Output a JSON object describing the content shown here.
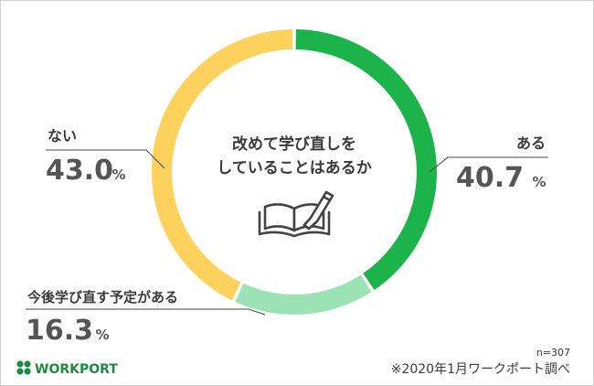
{
  "chart_data": {
    "type": "pie",
    "title": "改めて学び直しを していることはあるか",
    "title_lines": [
      "改めて学び直しを",
      "していることはあるか"
    ],
    "categories": [
      "ある",
      "今後学び直す予定がある",
      "ない"
    ],
    "values": [
      40.7,
      16.3,
      43.0
    ],
    "value_labels": [
      "40.7",
      "16.3",
      "43.0"
    ],
    "unit": "%",
    "colors": [
      "#1cb44a",
      "#9be3b4",
      "#fcd25c"
    ],
    "sample_note": "n=307",
    "source_note": "※2020年1月ワークポート調べ"
  },
  "brand": {
    "name": "WORKPORT",
    "icon": "clover-icon",
    "color": "#1f8a3d"
  },
  "center_icon": "book-pen-icon"
}
